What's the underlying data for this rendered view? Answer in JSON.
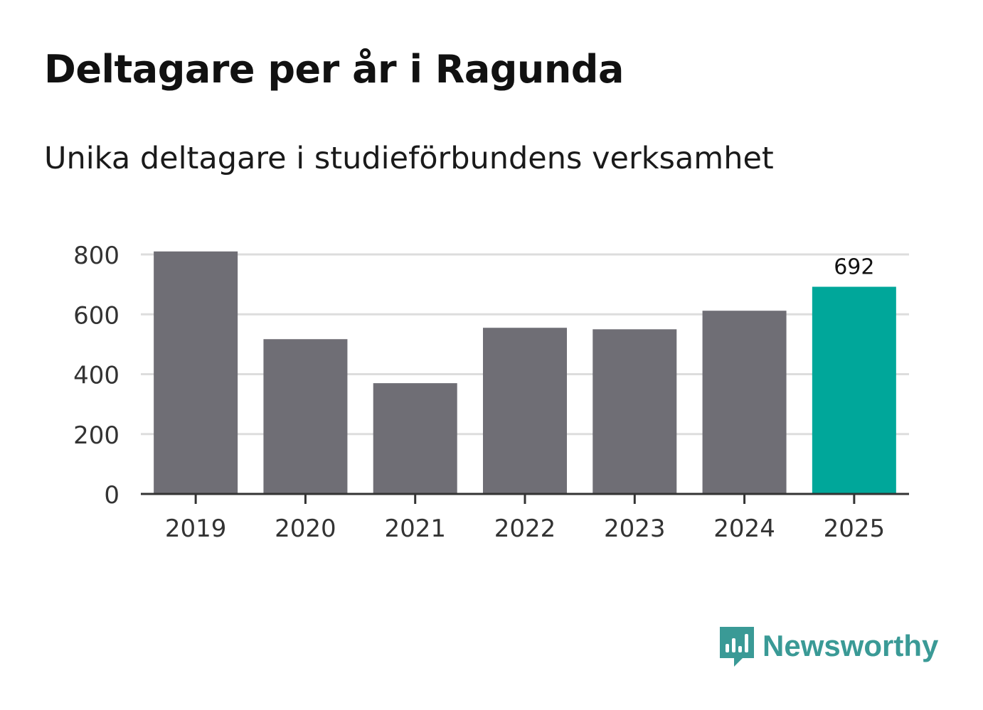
{
  "header": {
    "title": "Deltagare per år i Ragunda",
    "subtitle": "Unika deltagare i studieförbundens verksamhet"
  },
  "chart_data": {
    "type": "bar",
    "categories": [
      "2019",
      "2020",
      "2021",
      "2022",
      "2023",
      "2024",
      "2025"
    ],
    "values": [
      810,
      517,
      370,
      555,
      550,
      612,
      692
    ],
    "y_ticks": [
      "0",
      "200",
      "400",
      "600",
      "800"
    ],
    "ylim": [
      0,
      800
    ],
    "grid": true,
    "highlight_index": 6,
    "data_labels": [
      {
        "index": 6,
        "text": "692"
      }
    ],
    "colors": {
      "bar": "#6f6e75",
      "highlight": "#00a79a",
      "grid": "#dddddd",
      "axis": "#333333",
      "text": "#333333"
    }
  },
  "brand": {
    "name": "Newsworthy",
    "icon": "newsworthy-logo-icon",
    "color": "#3a9a96"
  }
}
